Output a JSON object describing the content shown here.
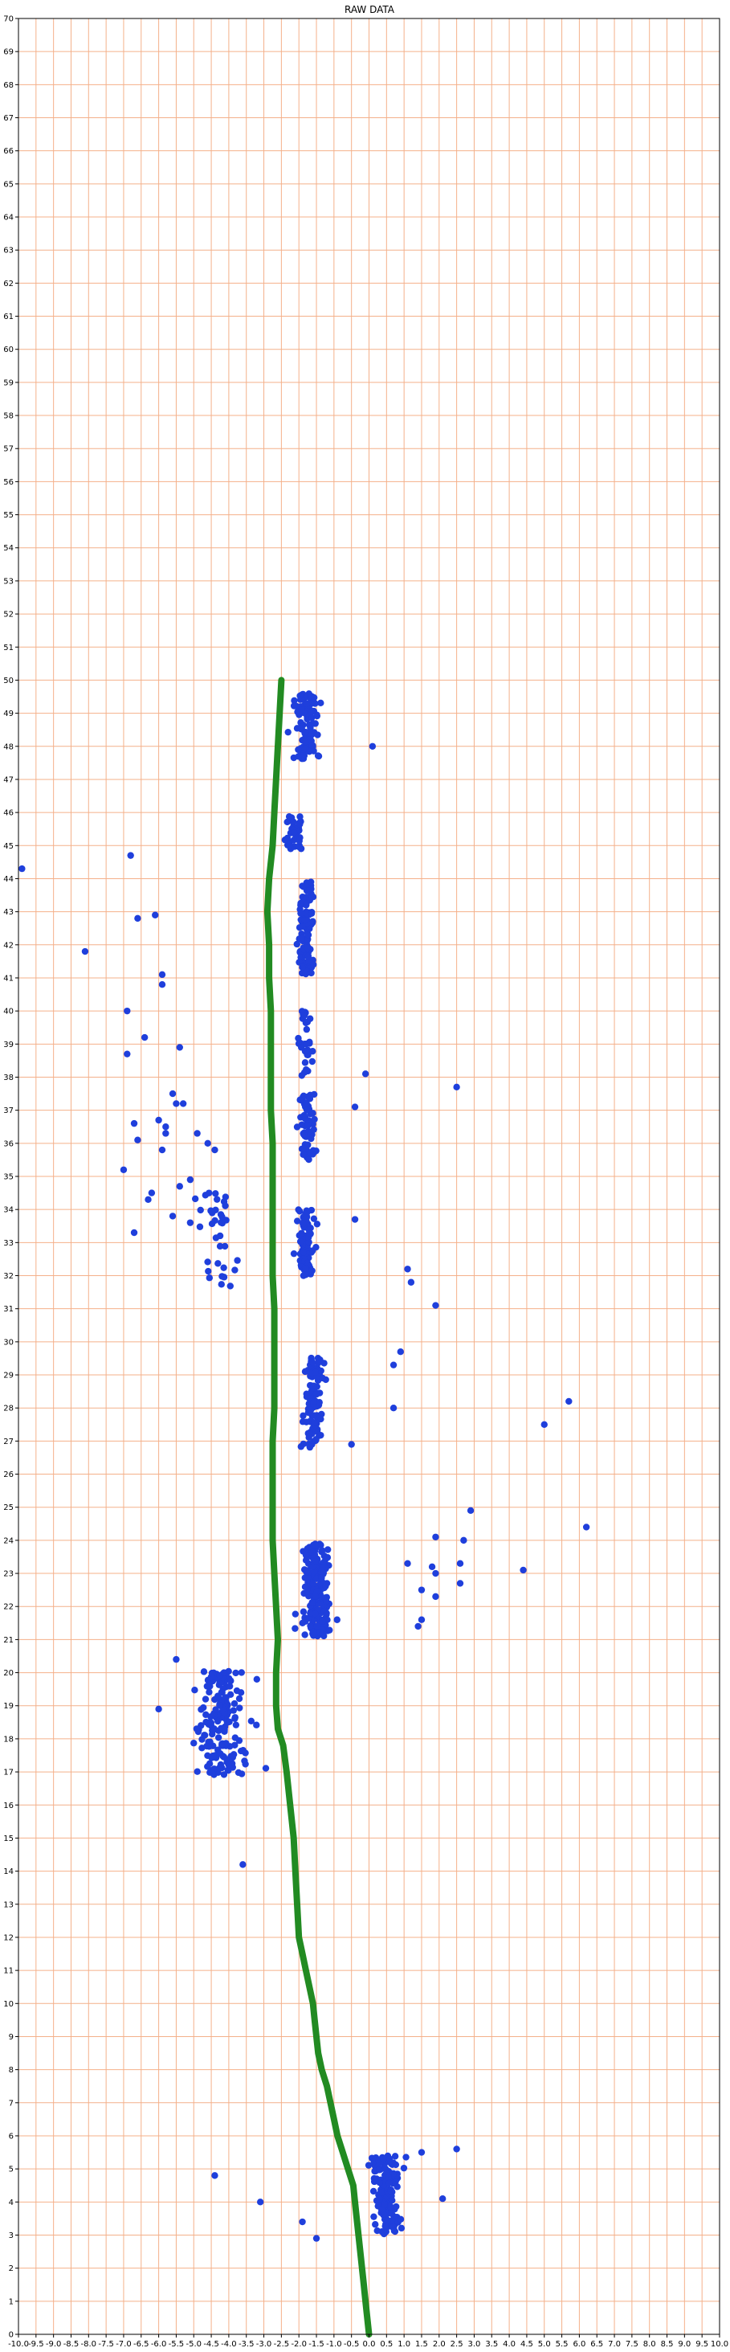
{
  "chart_data": {
    "type": "scatter",
    "title": "RAW DATA",
    "xlabel": "",
    "ylabel": "",
    "xlim": [
      -10.0,
      10.0
    ],
    "ylim": [
      0,
      70
    ],
    "x_step": 0.5,
    "y_step": 1,
    "grid": true,
    "grid_color": "#f4b08a",
    "x_tick_labels": [
      "-10.0",
      "-9.5",
      "-9.0",
      "-8.5",
      "-8.0",
      "-7.5",
      "-7.0",
      "-6.5",
      "-6.0",
      "-5.5",
      "-5.0",
      "-4.5",
      "-4.0",
      "-3.5",
      "-3.0",
      "-2.5",
      "-2.0",
      "-1.5",
      "-1.0",
      "-0.5",
      "0.0",
      "0.5",
      "1.0",
      "1.5",
      "2.0",
      "2.5",
      "3.0",
      "3.5",
      "4.0",
      "4.5",
      "5.0",
      "5.5",
      "6.0",
      "6.5",
      "7.0",
      "7.5",
      "8.0",
      "8.5",
      "9.0",
      "9.5",
      "10.0"
    ],
    "y_tick_labels": [
      "0",
      "1",
      "2",
      "3",
      "4",
      "5",
      "6",
      "7",
      "8",
      "9",
      "10",
      "11",
      "12",
      "13",
      "14",
      "15",
      "16",
      "17",
      "18",
      "19",
      "20",
      "21",
      "22",
      "23",
      "24",
      "25",
      "26",
      "27",
      "28",
      "29",
      "30",
      "31",
      "32",
      "33",
      "34",
      "35",
      "36",
      "37",
      "38",
      "39",
      "40",
      "41",
      "42",
      "43",
      "44",
      "45",
      "46",
      "47",
      "48",
      "49",
      "50",
      "51",
      "52",
      "53",
      "54",
      "55",
      "56",
      "57",
      "58",
      "59",
      "60",
      "61",
      "62",
      "63",
      "64",
      "65",
      "66",
      "67",
      "68",
      "69",
      "70"
    ],
    "series": [
      {
        "color": "#228b22",
        "style": "thick-line",
        "points": [
          [
            0.0,
            0.0
          ],
          [
            -0.05,
            0.5
          ],
          [
            -0.1,
            1.0
          ],
          [
            -0.15,
            1.5
          ],
          [
            -0.2,
            2.0
          ],
          [
            -0.25,
            2.5
          ],
          [
            -0.3,
            3.0
          ],
          [
            -0.35,
            3.5
          ],
          [
            -0.4,
            4.0
          ],
          [
            -0.45,
            4.5
          ],
          [
            -0.6,
            5.0
          ],
          [
            -0.75,
            5.5
          ],
          [
            -0.9,
            6.0
          ],
          [
            -1.0,
            6.5
          ],
          [
            -1.1,
            7.0
          ],
          [
            -1.2,
            7.5
          ],
          [
            -1.35,
            8.0
          ],
          [
            -1.45,
            8.5
          ],
          [
            -1.5,
            9.0
          ],
          [
            -1.55,
            9.5
          ],
          [
            -1.6,
            10.0
          ],
          [
            -1.7,
            10.5
          ],
          [
            -1.8,
            11.0
          ],
          [
            -1.9,
            11.5
          ],
          [
            -2.0,
            12.0
          ],
          [
            -2.05,
            13.0
          ],
          [
            -2.1,
            14.0
          ],
          [
            -2.15,
            15.0
          ],
          [
            -2.25,
            16.0
          ],
          [
            -2.35,
            17.0
          ],
          [
            -2.45,
            17.8
          ],
          [
            -2.6,
            18.3
          ],
          [
            -2.65,
            19.0
          ],
          [
            -2.65,
            20.0
          ],
          [
            -2.6,
            21.0
          ],
          [
            -2.65,
            22.0
          ],
          [
            -2.7,
            23.0
          ],
          [
            -2.75,
            24.0
          ],
          [
            -2.75,
            25.0
          ],
          [
            -2.75,
            26.0
          ],
          [
            -2.75,
            27.0
          ],
          [
            -2.7,
            28.0
          ],
          [
            -2.7,
            29.0
          ],
          [
            -2.7,
            30.0
          ],
          [
            -2.7,
            31.0
          ],
          [
            -2.75,
            32.0
          ],
          [
            -2.75,
            33.0
          ],
          [
            -2.75,
            34.0
          ],
          [
            -2.75,
            35.0
          ],
          [
            -2.75,
            36.0
          ],
          [
            -2.8,
            37.0
          ],
          [
            -2.8,
            38.0
          ],
          [
            -2.8,
            39.0
          ],
          [
            -2.8,
            40.0
          ],
          [
            -2.85,
            41.0
          ],
          [
            -2.85,
            42.0
          ],
          [
            -2.9,
            43.0
          ],
          [
            -2.85,
            44.0
          ],
          [
            -2.75,
            45.0
          ],
          [
            -2.7,
            46.0
          ],
          [
            -2.65,
            47.0
          ],
          [
            -2.6,
            48.0
          ],
          [
            -2.55,
            49.0
          ],
          [
            -2.5,
            50.0
          ]
        ]
      },
      {
        "color": "#1f3fdc",
        "style": "markers",
        "clusters": [
          {
            "center": [
              0.5,
              4.2
            ],
            "spread": [
              0.35,
              1.2
            ],
            "count": 150
          },
          {
            "center": [
              -4.2,
              18.5
            ],
            "spread": [
              0.55,
              1.6
            ],
            "count": 170
          },
          {
            "center": [
              -1.5,
              22.5
            ],
            "spread": [
              0.3,
              1.4
            ],
            "count": 200
          },
          {
            "center": [
              -1.6,
              28.2
            ],
            "spread": [
              0.25,
              1.4
            ],
            "count": 100
          },
          {
            "center": [
              -1.8,
              33.0
            ],
            "spread": [
              0.2,
              1.0
            ],
            "count": 80
          },
          {
            "center": [
              -4.4,
              33.0
            ],
            "spread": [
              0.4,
              1.5
            ],
            "count": 35
          },
          {
            "center": [
              -1.8,
              36.5
            ],
            "spread": [
              0.2,
              1.0
            ],
            "count": 60
          },
          {
            "center": [
              -1.8,
              39.0
            ],
            "spread": [
              0.2,
              1.0
            ],
            "count": 30
          },
          {
            "center": [
              -1.8,
              42.5
            ],
            "spread": [
              0.2,
              1.4
            ],
            "count": 100
          },
          {
            "center": [
              -2.1,
              45.4
            ],
            "spread": [
              0.2,
              0.5
            ],
            "count": 40
          },
          {
            "center": [
              -1.8,
              48.6
            ],
            "spread": [
              0.3,
              1.0
            ],
            "count": 110
          }
        ],
        "outliers": [
          [
            -9.9,
            44.3
          ],
          [
            -8.1,
            41.8
          ],
          [
            -6.8,
            44.7
          ],
          [
            -6.6,
            42.8
          ],
          [
            -6.1,
            42.9
          ],
          [
            -5.9,
            41.1
          ],
          [
            -5.9,
            40.8
          ],
          [
            -6.9,
            40.0
          ],
          [
            -6.9,
            38.7
          ],
          [
            -6.4,
            39.2
          ],
          [
            -5.4,
            38.9
          ],
          [
            -5.6,
            37.5
          ],
          [
            -5.5,
            37.2
          ],
          [
            -5.3,
            37.2
          ],
          [
            -6.7,
            36.6
          ],
          [
            -6.6,
            36.1
          ],
          [
            -6.0,
            36.7
          ],
          [
            -5.8,
            36.5
          ],
          [
            -5.8,
            36.3
          ],
          [
            -5.9,
            35.8
          ],
          [
            -4.9,
            36.3
          ],
          [
            -4.6,
            36.0
          ],
          [
            -4.4,
            35.8
          ],
          [
            -7.0,
            35.2
          ],
          [
            -6.2,
            34.5
          ],
          [
            -6.3,
            34.3
          ],
          [
            -6.7,
            33.3
          ],
          [
            -5.6,
            33.8
          ],
          [
            -5.1,
            33.6
          ],
          [
            -5.4,
            34.7
          ],
          [
            -5.1,
            34.9
          ],
          [
            -3.2,
            19.8
          ],
          [
            -3.6,
            14.2
          ],
          [
            -6.0,
            18.9
          ],
          [
            -5.5,
            20.4
          ],
          [
            -4.4,
            4.8
          ],
          [
            -3.1,
            4.0
          ],
          [
            -1.9,
            3.4
          ],
          [
            -1.5,
            2.9
          ],
          [
            0.1,
            48.0
          ],
          [
            -0.1,
            38.1
          ],
          [
            2.5,
            37.7
          ],
          [
            -0.4,
            37.1
          ],
          [
            -0.4,
            33.7
          ],
          [
            1.1,
            32.2
          ],
          [
            1.2,
            31.8
          ],
          [
            1.9,
            31.1
          ],
          [
            0.9,
            29.7
          ],
          [
            0.7,
            29.3
          ],
          [
            0.7,
            28.0
          ],
          [
            5.7,
            28.2
          ],
          [
            5.0,
            27.5
          ],
          [
            -0.5,
            26.9
          ],
          [
            2.9,
            24.9
          ],
          [
            6.2,
            24.4
          ],
          [
            1.9,
            24.1
          ],
          [
            2.7,
            24.0
          ],
          [
            1.1,
            23.3
          ],
          [
            1.8,
            23.2
          ],
          [
            1.9,
            23.0
          ],
          [
            2.6,
            23.3
          ],
          [
            4.4,
            23.1
          ],
          [
            1.5,
            22.5
          ],
          [
            1.9,
            22.3
          ],
          [
            2.6,
            22.7
          ],
          [
            1.5,
            21.6
          ],
          [
            1.4,
            21.4
          ],
          [
            2.5,
            5.6
          ],
          [
            1.5,
            5.5
          ],
          [
            2.1,
            4.1
          ]
        ]
      }
    ]
  }
}
